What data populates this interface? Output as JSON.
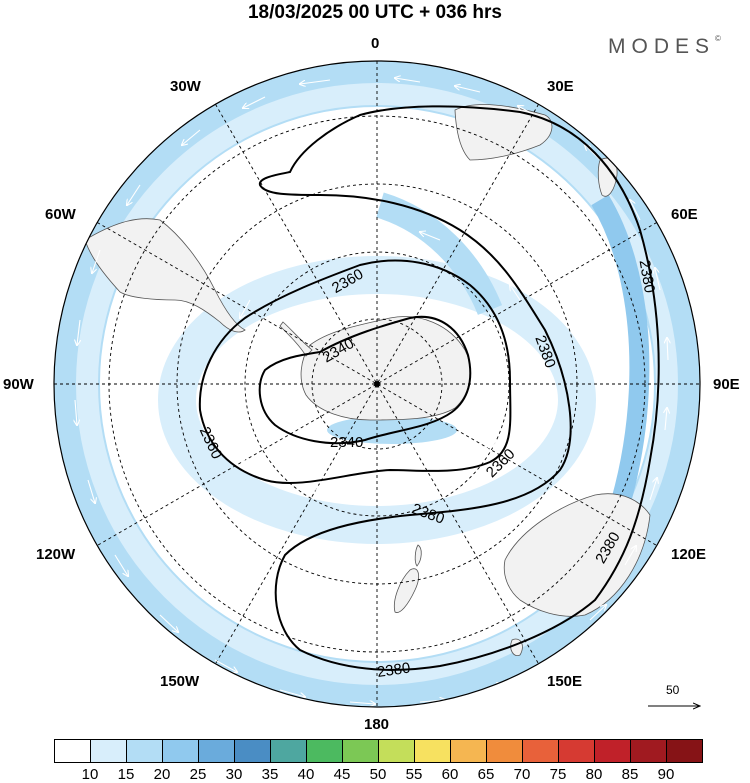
{
  "header": {
    "title": "18/03/2025  00 UTC  + 036 hrs",
    "brand": "MODES",
    "brand_mark": "©"
  },
  "map": {
    "projection": "south-polar-stereographic",
    "longitude_labels": {
      "top": "0",
      "top_left": "30W",
      "top_right": "30E",
      "upper_left": "60W",
      "upper_right": "60E",
      "left": "90W",
      "right": "90E",
      "lower_left": "120W",
      "lower_right": "120E",
      "bottom_left": "150W",
      "bottom_right": "150E",
      "bottom": "180"
    },
    "contour_labels": [
      "2340",
      "2340",
      "2360",
      "2360",
      "2360",
      "2380",
      "2380",
      "2380",
      "2380",
      "2380"
    ],
    "reference_vector": {
      "value": "50"
    },
    "colors": {
      "land": "#f2f2f2",
      "coast": "#555555",
      "shade_15": "#d8eefb",
      "shade_20": "#b3ddf5",
      "shade_25": "#90c9ee",
      "contour": "#000000"
    }
  },
  "legend": {
    "ticks": [
      "10",
      "15",
      "20",
      "25",
      "30",
      "35",
      "40",
      "45",
      "50",
      "55",
      "60",
      "65",
      "70",
      "75",
      "80",
      "85",
      "90"
    ],
    "colors": [
      "#ffffff",
      "#d8eefb",
      "#b3ddf5",
      "#90c9ee",
      "#6aabdc",
      "#4a8dc4",
      "#4ea7a0",
      "#4cba60",
      "#7cc855",
      "#c4de5a",
      "#f7e160",
      "#f5b651",
      "#f08c3c",
      "#e8613a",
      "#d63a32",
      "#c02129",
      "#a01a20",
      "#861316"
    ]
  }
}
